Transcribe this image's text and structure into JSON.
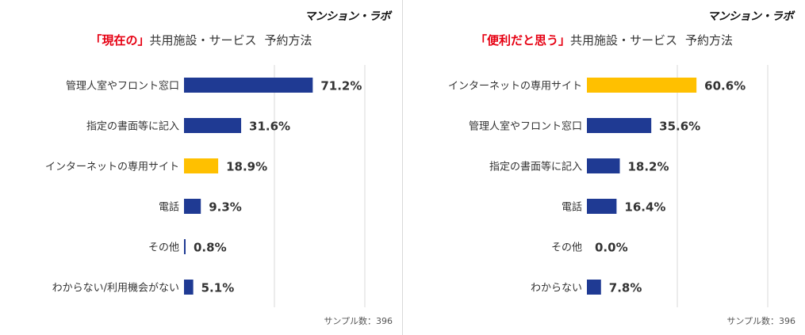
{
  "logo_text": "マンション・ラボ",
  "colors": {
    "navy": "#1f3a93",
    "highlight": "#ffc000",
    "accent_red": "#e60012",
    "grid": "#d9d9d9"
  },
  "left": {
    "title_highlight": "「現在の」",
    "title_rest": "共用施設・サービス",
    "title_sub": "予約方法",
    "sample_text": "サンプル数：396"
  },
  "right": {
    "title_highlight": "「便利だと思う」",
    "title_rest": "共用施設・サービス",
    "title_sub": "予約方法",
    "sample_text": "サンプル数：396"
  },
  "chart_data": [
    {
      "type": "bar",
      "orientation": "horizontal",
      "title": "「現在の」共用施設・サービス 予約方法",
      "categories": [
        "管理人室やフロント窓口",
        "指定の書面等に記入",
        "インターネットの専用サイト",
        "電話",
        "その他",
        "わからない/利用機会がない"
      ],
      "values": [
        71.2,
        31.6,
        18.9,
        9.3,
        0.8,
        5.1
      ],
      "value_labels": [
        "71.2%",
        "31.6%",
        "18.9%",
        "9.3%",
        "0.8%",
        "5.1%"
      ],
      "highlight_index": 2,
      "xlim": [
        0,
        100
      ],
      "grid": true,
      "sample_size": 396
    },
    {
      "type": "bar",
      "orientation": "horizontal",
      "title": "「便利だと思う」共用施設・サービス 予約方法",
      "categories": [
        "インターネットの専用サイト",
        "管理人室やフロント窓口",
        "指定の書面等に記入",
        "電話",
        "その他",
        "わからない"
      ],
      "values": [
        60.6,
        35.6,
        18.2,
        16.4,
        0.0,
        7.8
      ],
      "value_labels": [
        "60.6%",
        "35.6%",
        "18.2%",
        "16.4%",
        "0.0%",
        "7.8%"
      ],
      "highlight_index": 0,
      "xlim": [
        0,
        100
      ],
      "grid": true,
      "sample_size": 396
    }
  ]
}
